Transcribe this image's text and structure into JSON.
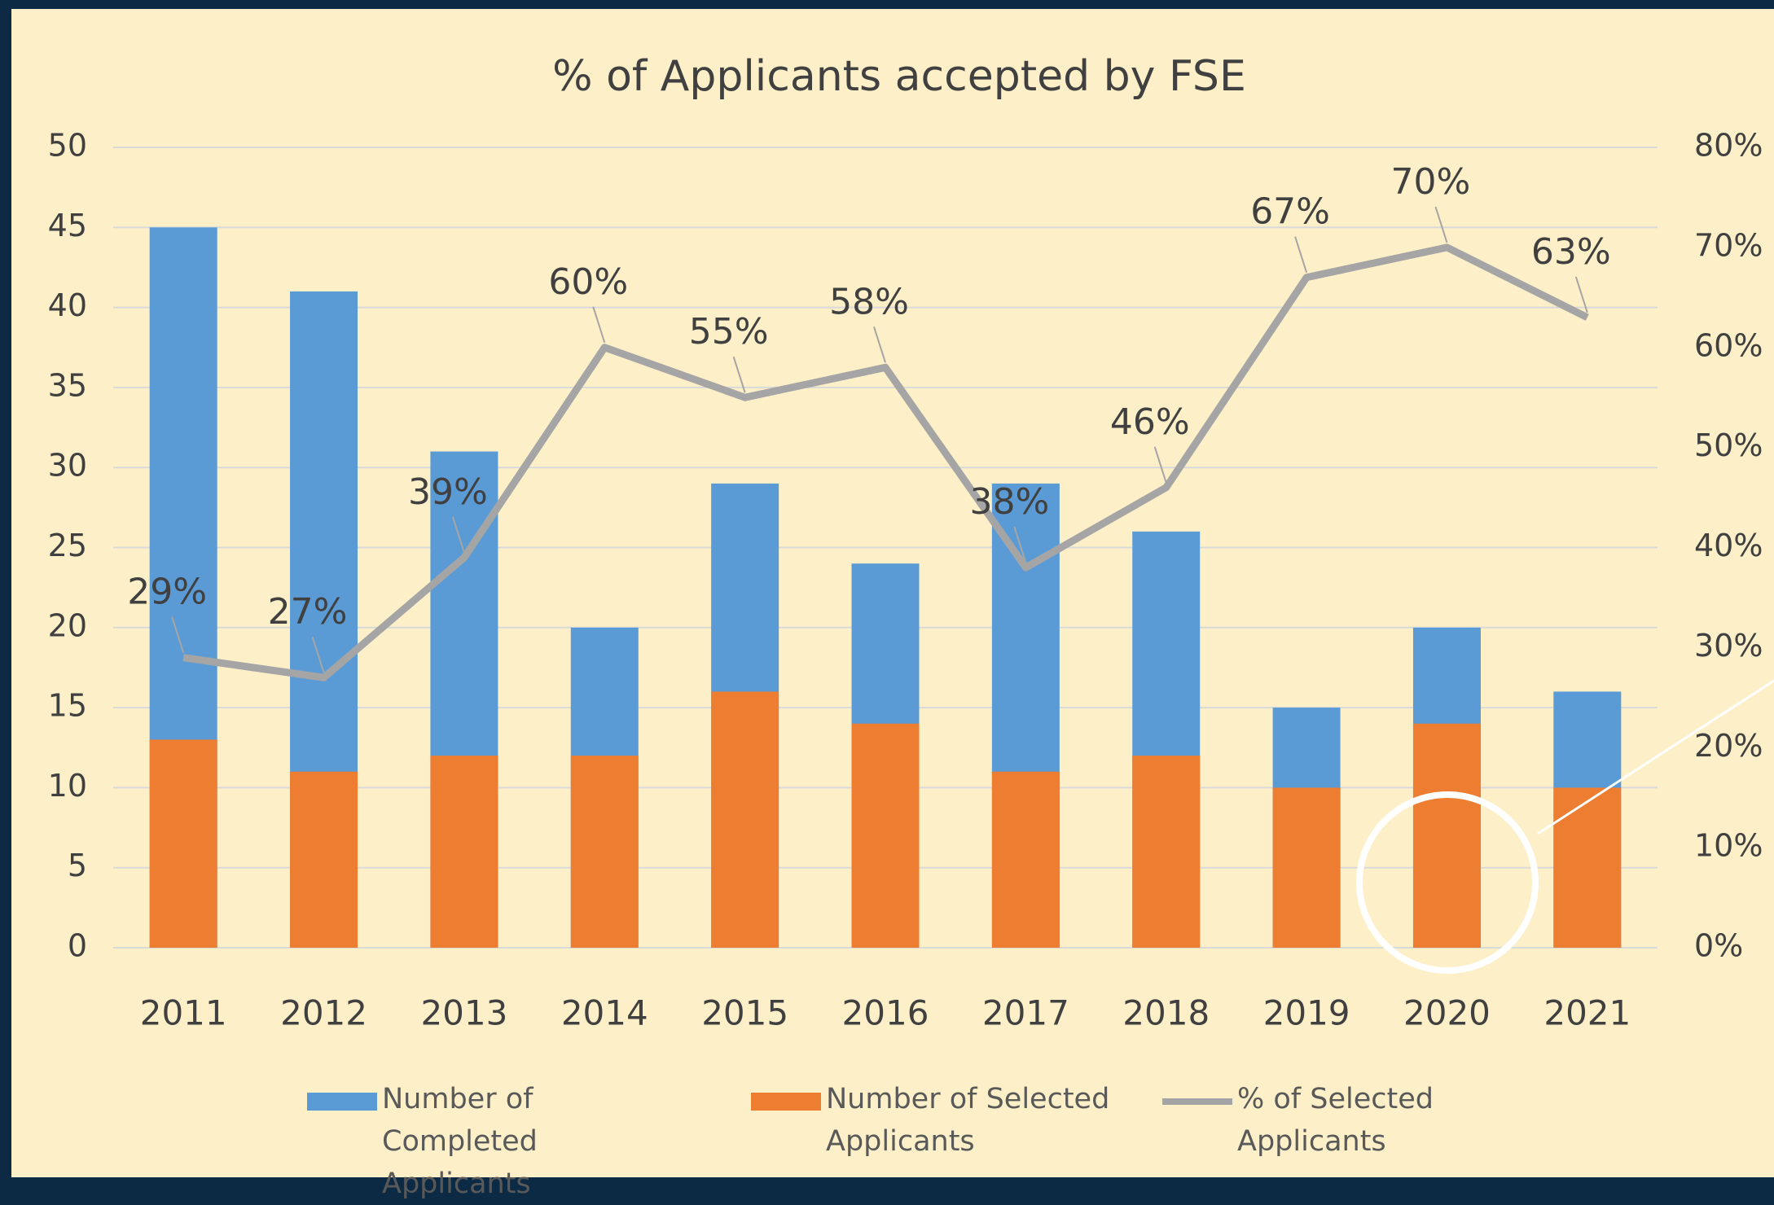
{
  "chart_data": {
    "type": "bar_line",
    "title": "% of Applicants accepted by FSE",
    "categories": [
      "2011",
      "2012",
      "2013",
      "2014",
      "2015",
      "2016",
      "2017",
      "2018",
      "2019",
      "2020",
      "2021"
    ],
    "series": [
      {
        "name": "Number of Completed Applicants",
        "color": "#5b9bd5",
        "type": "bar",
        "values": [
          45,
          41,
          31,
          20,
          29,
          24,
          29,
          26,
          15,
          20,
          16
        ]
      },
      {
        "name": "Number of Selected Applicants",
        "color": "#ed7d31",
        "type": "bar",
        "values": [
          13,
          11,
          12,
          12,
          16,
          14,
          11,
          12,
          10,
          14,
          10
        ]
      },
      {
        "name": "% of Selected Applicants",
        "color": "#a5a5a5",
        "type": "line",
        "axis": "y2",
        "values": [
          29,
          27,
          39,
          60,
          55,
          58,
          38,
          46,
          67,
          70,
          63
        ],
        "value_labels": [
          "29%",
          "27%",
          "39%",
          "60%",
          "55%",
          "58%",
          "38%",
          "46%",
          "67%",
          "70%",
          "63%"
        ]
      }
    ],
    "ylim": [
      0,
      50
    ],
    "yticks": [
      0,
      5,
      10,
      15,
      20,
      25,
      30,
      35,
      40,
      45,
      50
    ],
    "y2lim": [
      0,
      80
    ],
    "y2ticks": [
      {
        "value": 0,
        "label": "0%"
      },
      {
        "value": 10,
        "label": "10%"
      },
      {
        "value": 20,
        "label": "20%"
      },
      {
        "value": 30,
        "label": "30%"
      },
      {
        "value": 40,
        "label": "40%"
      },
      {
        "value": 50,
        "label": "50%"
      },
      {
        "value": 60,
        "label": "60%"
      },
      {
        "value": 70,
        "label": "70%"
      },
      {
        "value": 80,
        "label": "80%"
      }
    ],
    "grid": true
  }
}
